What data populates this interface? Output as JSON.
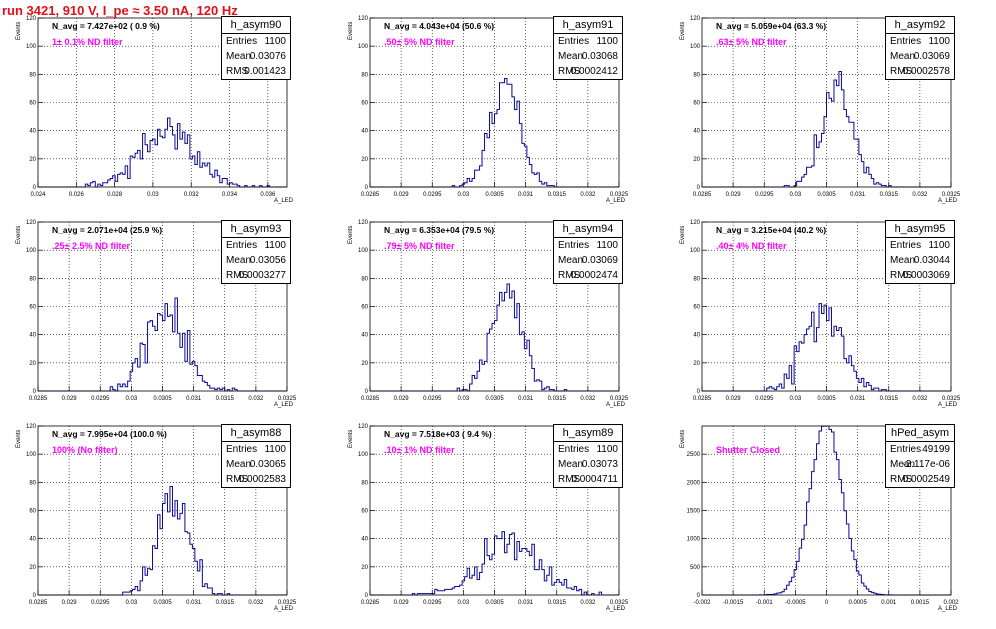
{
  "header": {
    "title": "run 3421,   910 V, I_pe ≈ 3.50 nA, 120 Hz"
  },
  "colors": {
    "title": "#e0101a",
    "filter_label": "#ff00ff",
    "histogram_line": "#0a0a96",
    "grid": "#000000"
  },
  "axis_titles": {
    "x": "A_LED",
    "y": "Events"
  },
  "chart_data": [
    {
      "type": "bar",
      "name": "h_asym90",
      "n_avg_label": "N_avg = 7.427e+02 ( 0.9 %)",
      "filter_label": "1± 0.1% ND filter",
      "stats": {
        "Entries": "1100",
        "Mean": "0.03076",
        "RMS": "0.001423"
      },
      "xlim": [
        0.024,
        0.037
      ],
      "ylim": [
        0,
        120
      ],
      "xticks": [
        "0.024",
        "0.026",
        "0.028",
        "0.03",
        "0.032",
        "0.034",
        "0.036"
      ],
      "yticks": [
        "0",
        "20",
        "40",
        "60",
        "80",
        "100",
        "120"
      ],
      "mean": 0.03076,
      "rms": 0.001423,
      "entries": 1100,
      "nbins": 100,
      "seed": 11,
      "grid": true
    },
    {
      "type": "bar",
      "name": "h_asym91",
      "n_avg_label": "N_avg = 4.043e+04 (50.6 %)",
      "filter_label": ".50± 5% ND filter",
      "stats": {
        "Entries": "1100",
        "Mean": "0.03068",
        "RMS": "0.0002412"
      },
      "xlim": [
        0.0285,
        0.0325
      ],
      "ylim": [
        0,
        120
      ],
      "xticks": [
        "0.0285",
        "0.029",
        "0.0295",
        "0.03",
        "0.0305",
        "0.031",
        "0.0315",
        "0.032",
        "0.0325"
      ],
      "yticks": [
        "0",
        "20",
        "40",
        "60",
        "80",
        "100",
        "120"
      ],
      "mean": 0.03068,
      "rms": 0.0002412,
      "entries": 1100,
      "nbins": 100,
      "seed": 23,
      "grid": true
    },
    {
      "type": "bar",
      "name": "h_asym92",
      "n_avg_label": "N_avg = 5.059e+04 (63.3 %)",
      "filter_label": ".63± 5% ND filter",
      "stats": {
        "Entries": "1100",
        "Mean": "0.03069",
        "RMS": "0.0002578"
      },
      "xlim": [
        0.0285,
        0.0325
      ],
      "ylim": [
        0,
        120
      ],
      "xticks": [
        "0.0285",
        "0.029",
        "0.0295",
        "0.03",
        "0.0305",
        "0.031",
        "0.0315",
        "0.032",
        "0.0325"
      ],
      "yticks": [
        "0",
        "20",
        "40",
        "60",
        "80",
        "100",
        "120"
      ],
      "mean": 0.03069,
      "rms": 0.0002578,
      "entries": 1100,
      "nbins": 100,
      "seed": 37,
      "grid": true
    },
    {
      "type": "bar",
      "name": "h_asym93",
      "n_avg_label": "N_avg = 2.071e+04 (25.9 %)",
      "filter_label": ".25± 2.5% ND filter",
      "stats": {
        "Entries": "1100",
        "Mean": "0.03056",
        "RMS": "0.0003277"
      },
      "xlim": [
        0.0285,
        0.0325
      ],
      "ylim": [
        0,
        120
      ],
      "xticks": [
        "0.0285",
        "0.029",
        "0.0295",
        "0.03",
        "0.0305",
        "0.031",
        "0.0315",
        "0.032",
        "0.0325"
      ],
      "yticks": [
        "0",
        "20",
        "40",
        "60",
        "80",
        "100",
        "120"
      ],
      "mean": 0.03056,
      "rms": 0.0003277,
      "entries": 1100,
      "nbins": 100,
      "seed": 41,
      "grid": true
    },
    {
      "type": "bar",
      "name": "h_asym94",
      "n_avg_label": "N_avg = 6.353e+04 (79.5 %)",
      "filter_label": ".79± 5% ND filter",
      "stats": {
        "Entries": "1100",
        "Mean": "0.03069",
        "RMS": "0.0002474"
      },
      "xlim": [
        0.0285,
        0.0325
      ],
      "ylim": [
        0,
        120
      ],
      "xticks": [
        "0.0285",
        "0.029",
        "0.0295",
        "0.03",
        "0.0305",
        "0.031",
        "0.0315",
        "0.032",
        "0.0325"
      ],
      "yticks": [
        "0",
        "20",
        "40",
        "60",
        "80",
        "100",
        "120"
      ],
      "mean": 0.03069,
      "rms": 0.0002474,
      "entries": 1100,
      "nbins": 100,
      "seed": 53,
      "grid": true
    },
    {
      "type": "bar",
      "name": "h_asym95",
      "n_avg_label": "N_avg = 3.215e+04 (40.2 %)",
      "filter_label": ".40± 4% ND filter",
      "stats": {
        "Entries": "1100",
        "Mean": "0.03044",
        "RMS": "0.0003069"
      },
      "xlim": [
        0.0285,
        0.0325
      ],
      "ylim": [
        0,
        120
      ],
      "xticks": [
        "0.0285",
        "0.029",
        "0.0295",
        "0.03",
        "0.0305",
        "0.031",
        "0.0315",
        "0.032",
        "0.0325"
      ],
      "yticks": [
        "0",
        "20",
        "40",
        "60",
        "80",
        "100",
        "120"
      ],
      "mean": 0.03044,
      "rms": 0.0003069,
      "entries": 1100,
      "nbins": 100,
      "seed": 67,
      "grid": true
    },
    {
      "type": "bar",
      "name": "h_asym88",
      "n_avg_label": "N_avg = 7.995e+04 (100.0 %)",
      "filter_label": "100% (No filter)",
      "stats": {
        "Entries": "1100",
        "Mean": "0.03065",
        "RMS": "0.0002583"
      },
      "xlim": [
        0.0285,
        0.0325
      ],
      "ylim": [
        0,
        120
      ],
      "xticks": [
        "0.0285",
        "0.029",
        "0.0295",
        "0.03",
        "0.0305",
        "0.031",
        "0.0315",
        "0.032",
        "0.0325"
      ],
      "yticks": [
        "0",
        "20",
        "40",
        "60",
        "80",
        "100",
        "120"
      ],
      "mean": 0.03065,
      "rms": 0.0002583,
      "entries": 1100,
      "nbins": 100,
      "seed": 79,
      "grid": true
    },
    {
      "type": "bar",
      "name": "h_asym89",
      "n_avg_label": "N_avg = 7.518e+03 ( 9.4 %)",
      "filter_label": ".10± 1% ND filter",
      "stats": {
        "Entries": "1100",
        "Mean": "0.03073",
        "RMS": "0.0004711"
      },
      "xlim": [
        0.0285,
        0.0325
      ],
      "ylim": [
        0,
        120
      ],
      "xticks": [
        "0.0285",
        "0.029",
        "0.0295",
        "0.03",
        "0.0305",
        "0.031",
        "0.0315",
        "0.032",
        "0.0325"
      ],
      "yticks": [
        "0",
        "20",
        "40",
        "60",
        "80",
        "100",
        "120"
      ],
      "mean": 0.03073,
      "rms": 0.0004711,
      "entries": 1100,
      "nbins": 100,
      "seed": 83,
      "grid": true
    },
    {
      "type": "bar",
      "name": "hPed_asym",
      "n_avg_label": "",
      "filter_label": "Shutter Closed",
      "stats": {
        "Entries": "49199",
        "Mean": "-2.117e-06",
        "RMS": "0.0002549"
      },
      "xlim": [
        -0.002,
        0.002
      ],
      "ylim": [
        0,
        3000
      ],
      "xticks": [
        "-0.002",
        "-0.0015",
        "-0.001",
        "-0.0005",
        "0",
        "0.0005",
        "0.001",
        "0.0015",
        "0.002"
      ],
      "yticks": [
        "0",
        "500",
        "1000",
        "1500",
        "2000",
        "2500"
      ],
      "mean": -2.117e-06,
      "rms": 0.0002549,
      "entries": 49199,
      "nbins": 100,
      "seed": 97,
      "grid": true
    }
  ]
}
